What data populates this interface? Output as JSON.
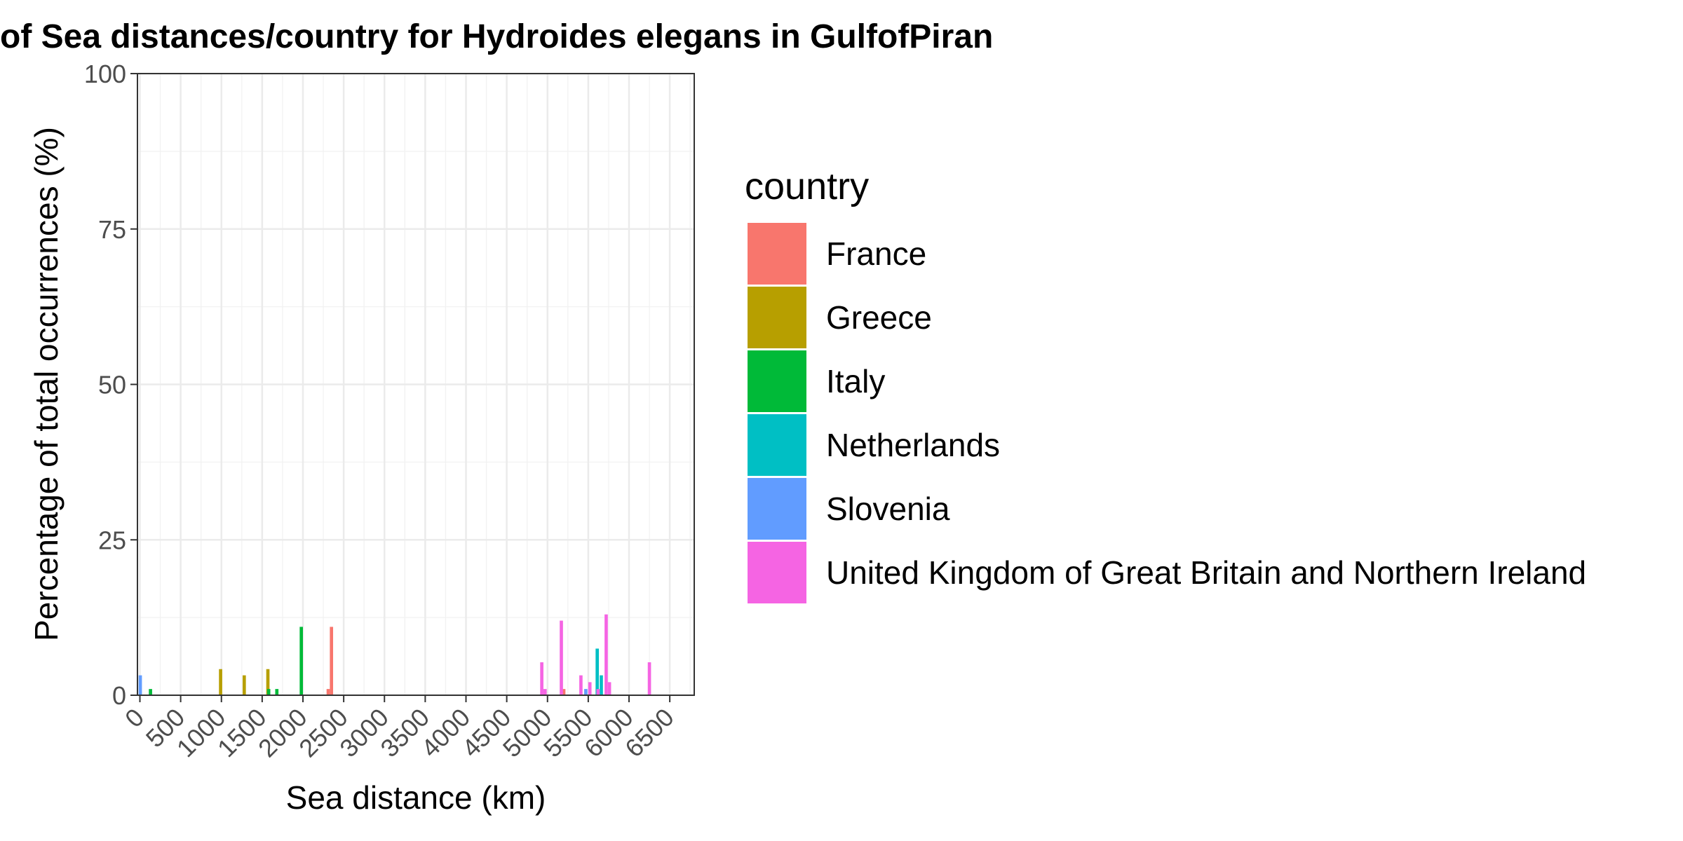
{
  "chart_data": {
    "type": "bar",
    "title": "of Sea distances/country for Hydroides elegans in GulfofPiran",
    "xlabel": "Sea distance (km)",
    "ylabel": "Percentage of total occurrences (%)",
    "xlim": [
      -30,
      6800
    ],
    "ylim": [
      0,
      100
    ],
    "x_ticks": [
      "0",
      "500",
      "1000",
      "1500",
      "2000",
      "2500",
      "3000",
      "3500",
      "4000",
      "4500",
      "5000",
      "5500",
      "6000",
      "6500"
    ],
    "y_ticks": [
      "0",
      "25",
      "50",
      "75",
      "100"
    ],
    "grid": true,
    "legend": {
      "title": "country",
      "position": "right"
    },
    "bar_width_km": 40,
    "series": [
      {
        "name": "France",
        "color": "#F8766D",
        "points": [
          [
            2310,
            1
          ],
          [
            2350,
            11
          ],
          [
            5200,
            1
          ]
        ]
      },
      {
        "name": "Greece",
        "color": "#B79F00",
        "points": [
          [
            990,
            4.2
          ],
          [
            1280,
            3.2
          ],
          [
            1570,
            4.2
          ]
        ]
      },
      {
        "name": "Italy",
        "color": "#00BA38",
        "points": [
          [
            130,
            1
          ],
          [
            1580,
            1
          ],
          [
            1680,
            1
          ],
          [
            1980,
            11
          ]
        ]
      },
      {
        "name": "Netherlands",
        "color": "#00BFC4",
        "points": [
          [
            5610,
            7.5
          ],
          [
            5660,
            3.2
          ]
        ]
      },
      {
        "name": "Slovenia",
        "color": "#619CFF",
        "points": [
          [
            5,
            3.2
          ],
          [
            5470,
            1
          ]
        ]
      },
      {
        "name": "United Kingdom of Great Britain and Northern Ireland",
        "color": "#F564E3",
        "points": [
          [
            4930,
            5.3
          ],
          [
            4970,
            1
          ],
          [
            5170,
            12
          ],
          [
            5410,
            3.2
          ],
          [
            5520,
            2.1
          ],
          [
            5620,
            1
          ],
          [
            5720,
            13
          ],
          [
            5760,
            2.1
          ],
          [
            6250,
            5.3
          ]
        ]
      }
    ]
  }
}
